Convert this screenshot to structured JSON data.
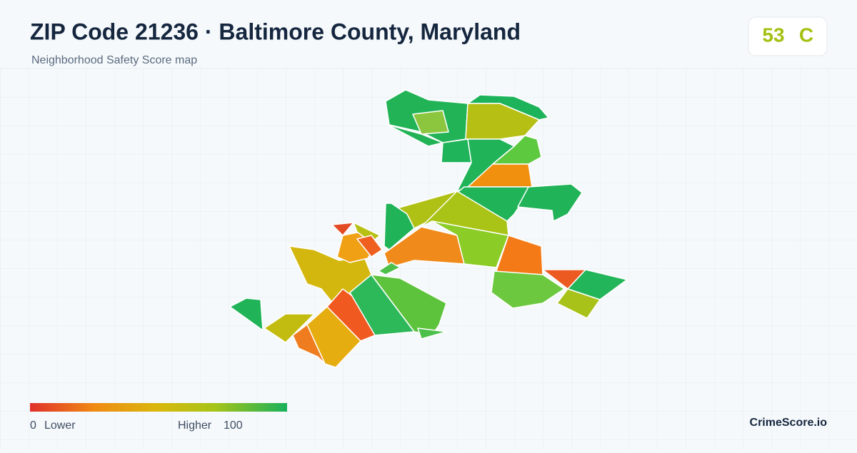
{
  "header": {
    "title": "ZIP Code 21236 · Baltimore County, Maryland",
    "subtitle": "Neighborhood Safety Score map"
  },
  "score": {
    "value": "53",
    "grade": "C"
  },
  "legend": {
    "min": "0",
    "min_label": "Lower",
    "max_label": "Higher",
    "max": "100"
  },
  "footer": {
    "brand": "CrimeScore.io"
  }
}
